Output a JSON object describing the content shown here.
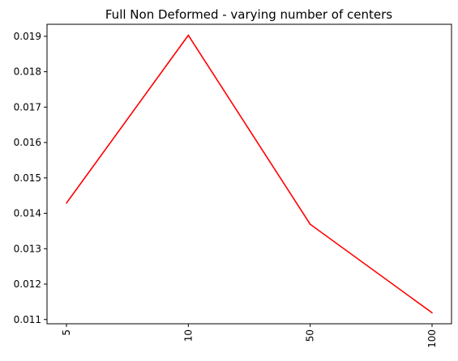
{
  "chart_data": {
    "type": "line",
    "title": "Full Non Deformed - varying number of centers",
    "xlabel": "",
    "ylabel": "",
    "categories": [
      "5",
      "10",
      "50",
      "100"
    ],
    "series": [
      {
        "values": [
          0.01429,
          0.01903,
          0.01369,
          0.01119
        ],
        "color": "#ff0000"
      }
    ],
    "yticks": [
      "0.011",
      "0.012",
      "0.013",
      "0.014",
      "0.015",
      "0.016",
      "0.017",
      "0.018",
      "0.019"
    ],
    "ylim": [
      0.01088,
      0.01934
    ],
    "grid": false,
    "x_tick_rotation": "vertical"
  }
}
